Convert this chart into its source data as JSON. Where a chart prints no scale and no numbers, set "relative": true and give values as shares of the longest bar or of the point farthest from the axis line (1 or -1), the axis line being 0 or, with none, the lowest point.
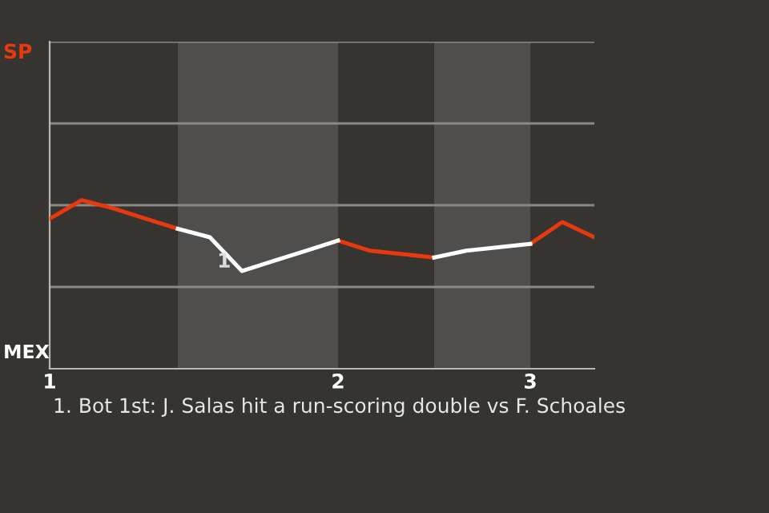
{
  "chart_data": {
    "type": "line",
    "categories": [
      "1",
      null,
      null,
      null,
      null,
      null,
      null,
      null,
      null,
      "2",
      null,
      null,
      null,
      null,
      null,
      "3",
      null,
      null
    ],
    "relative": true,
    "series": [
      {
        "color": "#e8380d",
        "values": [
          0.89,
          1,
          0.95,
          0.89,
          0.83,
          null,
          null,
          null,
          null,
          0.76,
          0.7,
          0.68,
          0.66,
          null,
          null,
          0.74,
          0.87,
          0.78
        ]
      },
      {
        "color": "#ffffff",
        "values": [
          null,
          null,
          null,
          null,
          0.83,
          0.78,
          0.58,
          0.64,
          0.7,
          0.76,
          null,
          null,
          0.66,
          0.7,
          0.72,
          0.74,
          null,
          null
        ]
      }
    ],
    "ref_lines": [
      {
        "axis": "y",
        "value": 0.485,
        "label": null,
        "color": "#8a8886"
      },
      {
        "axis": "y",
        "value": 0.97,
        "label": null,
        "color": "#8a8886"
      },
      {
        "axis": "y",
        "value": 1.455,
        "label": null,
        "color": "#8a8886"
      },
      {
        "axis": "y",
        "value": 1.94,
        "label": null,
        "color": "#8a8886"
      }
    ],
    "legend": false,
    "marker": "none",
    "line_style": "solid",
    "annotations": [
      "SP",
      "MEX",
      "1",
      "1. Bot 1st: J. Salas hit a run-scoring double vs F. Schoales"
    ]
  }
}
